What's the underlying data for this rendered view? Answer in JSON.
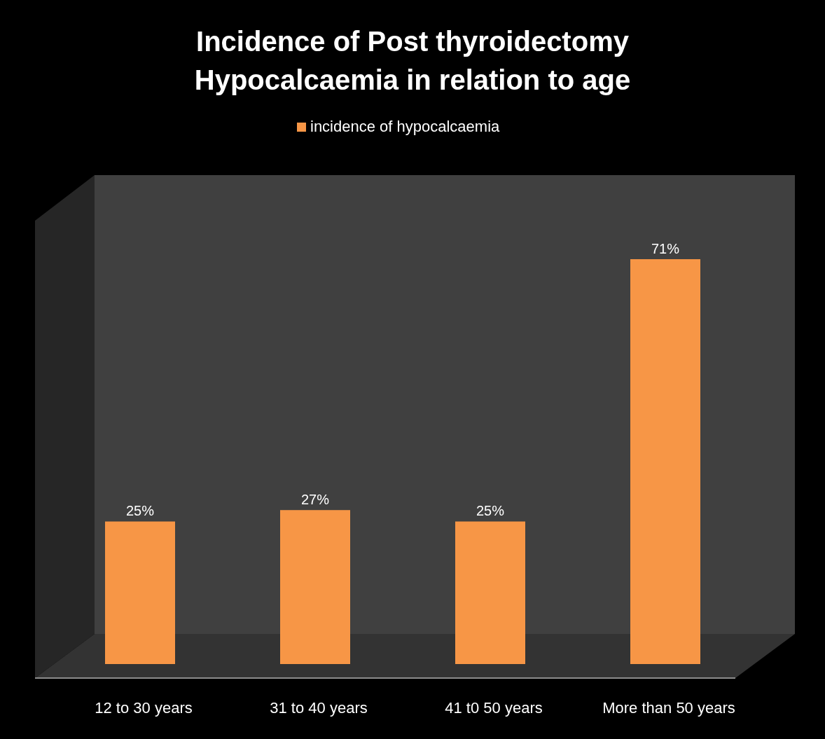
{
  "chart_data": {
    "type": "bar",
    "title": "Incidence of Post thyroidectomy Hypocalcaemia in relation to age",
    "categories": [
      "12 to 30 years",
      "31 to 40 years",
      "41 t0 50 years",
      "More than 50 years"
    ],
    "series": [
      {
        "name": "incidence of hypocalcaemia",
        "color": "#f79646",
        "values": [
          25,
          27,
          25,
          71
        ],
        "value_labels": [
          "25%",
          "27%",
          "25%",
          "71%"
        ]
      }
    ],
    "legend": "top"
  }
}
